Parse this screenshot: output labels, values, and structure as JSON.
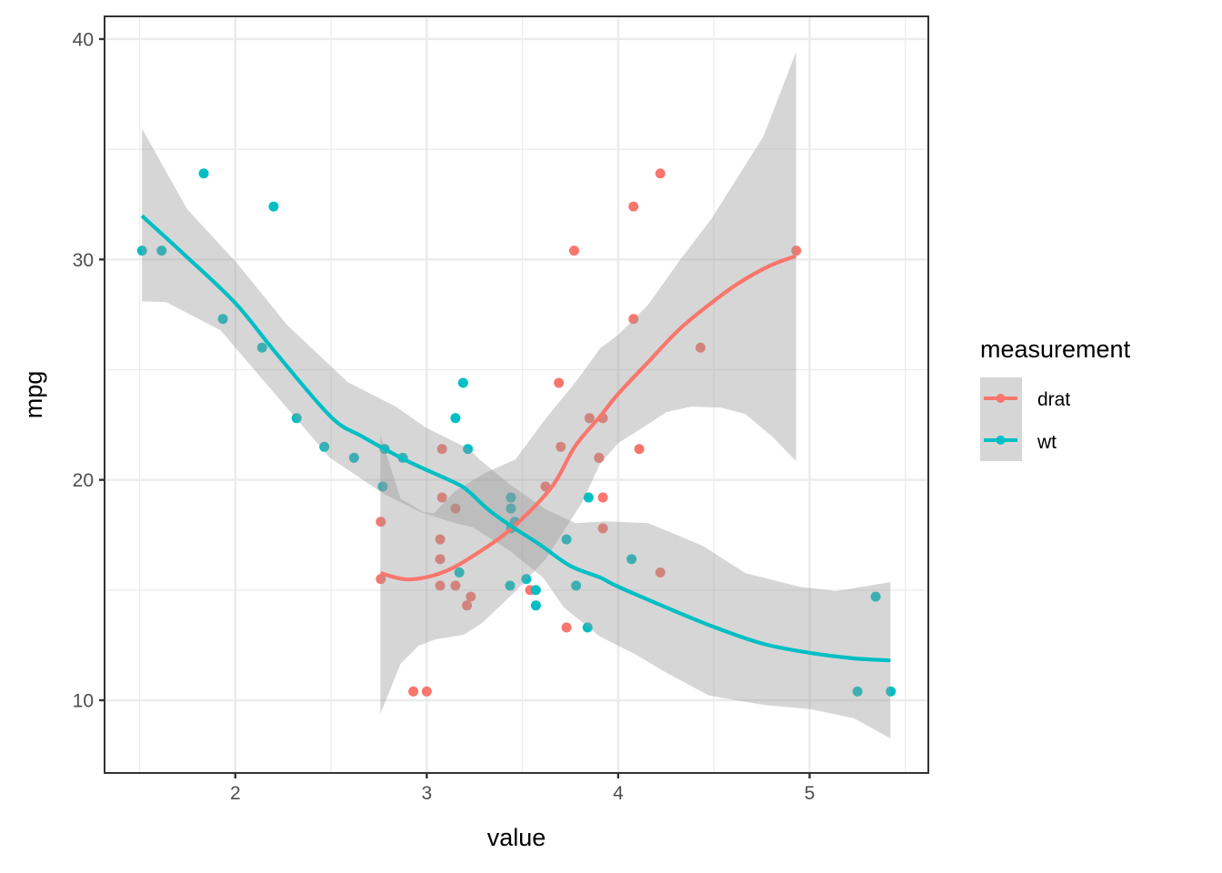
{
  "chart_data": {
    "type": "scatter",
    "title": "",
    "xlabel": "value",
    "ylabel": "mpg",
    "xlim": [
      1.317,
      5.62
    ],
    "ylim": [
      6.7,
      41.03
    ],
    "x_ticks": [
      2,
      3,
      4,
      5
    ],
    "x_tick_labels": [
      "2",
      "3",
      "4",
      "5"
    ],
    "y_ticks": [
      10,
      20,
      30,
      40
    ],
    "y_tick_labels": [
      "10",
      "20",
      "30",
      "40"
    ],
    "x_minor_ticks": [
      1.5,
      2.5,
      3.5,
      4.5,
      5.5
    ],
    "y_minor_ticks": [
      15,
      25,
      35
    ],
    "grid": true,
    "legend": {
      "title": "measurement",
      "position": "right",
      "entries": [
        "drat",
        "wt"
      ]
    },
    "colors": {
      "drat": "#F8766D",
      "wt": "#00BFC4",
      "ribbon": "#999999",
      "grid": "#EBEBEB",
      "border": "#333333"
    },
    "series": [
      {
        "name": "drat",
        "points": [
          [
            3.9,
            21.0
          ],
          [
            3.9,
            21.0
          ],
          [
            3.85,
            22.8
          ],
          [
            3.08,
            21.4
          ],
          [
            3.15,
            18.7
          ],
          [
            2.76,
            18.1
          ],
          [
            3.21,
            14.3
          ],
          [
            3.69,
            24.4
          ],
          [
            3.92,
            22.8
          ],
          [
            3.92,
            19.2
          ],
          [
            3.92,
            17.8
          ],
          [
            3.07,
            16.4
          ],
          [
            3.07,
            17.3
          ],
          [
            3.07,
            15.2
          ],
          [
            2.93,
            10.4
          ],
          [
            3.0,
            10.4
          ],
          [
            3.23,
            14.7
          ],
          [
            4.08,
            32.4
          ],
          [
            4.93,
            30.4
          ],
          [
            4.22,
            33.9
          ],
          [
            3.7,
            21.5
          ],
          [
            2.76,
            15.5
          ],
          [
            3.15,
            15.2
          ],
          [
            3.73,
            13.3
          ],
          [
            3.08,
            19.2
          ],
          [
            4.08,
            27.3
          ],
          [
            4.43,
            26.0
          ],
          [
            3.77,
            30.4
          ],
          [
            4.22,
            15.8
          ],
          [
            3.62,
            19.7
          ],
          [
            3.54,
            15.0
          ],
          [
            4.11,
            21.4
          ]
        ],
        "smooth": [
          [
            2.758,
            15.77
          ],
          [
            2.91,
            15.48
          ],
          [
            3.1,
            15.86
          ],
          [
            3.303,
            16.89
          ],
          [
            3.464,
            17.96
          ],
          [
            3.654,
            19.69
          ],
          [
            3.777,
            21.55
          ],
          [
            3.905,
            22.87
          ],
          [
            4.0,
            23.9
          ],
          [
            4.156,
            25.34
          ],
          [
            4.318,
            26.82
          ],
          [
            4.474,
            27.94
          ],
          [
            4.63,
            28.93
          ],
          [
            4.791,
            29.71
          ],
          [
            4.929,
            30.16
          ]
        ],
        "ribbon_upper": [
          [
            2.758,
            22.04
          ],
          [
            2.791,
            21.13
          ],
          [
            2.863,
            19.15
          ],
          [
            2.981,
            18.54
          ],
          [
            3.038,
            18.49
          ],
          [
            3.147,
            19.48
          ],
          [
            3.303,
            20.31
          ],
          [
            3.464,
            20.93
          ],
          [
            3.621,
            22.78
          ],
          [
            3.777,
            24.43
          ],
          [
            3.905,
            25.96
          ],
          [
            4.0,
            26.58
          ],
          [
            4.156,
            27.94
          ],
          [
            4.318,
            29.92
          ],
          [
            4.488,
            31.86
          ],
          [
            4.569,
            32.97
          ],
          [
            4.758,
            35.57
          ],
          [
            4.929,
            39.4
          ]
        ],
        "ribbon_lower": [
          [
            2.758,
            9.38
          ],
          [
            2.863,
            11.65
          ],
          [
            2.957,
            12.47
          ],
          [
            3.043,
            12.76
          ],
          [
            3.194,
            12.97
          ],
          [
            3.289,
            13.51
          ],
          [
            3.464,
            14.95
          ],
          [
            3.621,
            16.4
          ],
          [
            3.81,
            18.95
          ],
          [
            3.905,
            20.72
          ],
          [
            4.0,
            21.67
          ],
          [
            4.128,
            22.37
          ],
          [
            4.251,
            23.07
          ],
          [
            4.379,
            23.32
          ],
          [
            4.536,
            23.28
          ],
          [
            4.664,
            22.99
          ],
          [
            4.806,
            21.96
          ],
          [
            4.929,
            20.85
          ]
        ]
      },
      {
        "name": "wt",
        "points": [
          [
            2.62,
            21.0
          ],
          [
            2.875,
            21.0
          ],
          [
            2.32,
            22.8
          ],
          [
            3.215,
            21.4
          ],
          [
            3.44,
            18.7
          ],
          [
            3.46,
            18.1
          ],
          [
            3.57,
            14.3
          ],
          [
            3.19,
            24.4
          ],
          [
            3.15,
            22.8
          ],
          [
            3.44,
            19.2
          ],
          [
            3.44,
            17.8
          ],
          [
            4.07,
            16.4
          ],
          [
            3.73,
            17.3
          ],
          [
            3.78,
            15.2
          ],
          [
            5.25,
            10.4
          ],
          [
            5.424,
            10.4
          ],
          [
            5.345,
            14.7
          ],
          [
            2.2,
            32.4
          ],
          [
            1.615,
            30.4
          ],
          [
            1.835,
            33.9
          ],
          [
            2.465,
            21.5
          ],
          [
            3.52,
            15.5
          ],
          [
            3.435,
            15.2
          ],
          [
            3.84,
            13.3
          ],
          [
            3.845,
            19.2
          ],
          [
            1.935,
            27.3
          ],
          [
            2.14,
            26.0
          ],
          [
            1.513,
            30.4
          ],
          [
            3.17,
            15.8
          ],
          [
            2.77,
            19.7
          ],
          [
            3.57,
            15.0
          ],
          [
            2.78,
            21.4
          ]
        ],
        "smooth": [
          [
            1.512,
            31.98
          ],
          [
            1.725,
            30.29
          ],
          [
            2.0,
            28.02
          ],
          [
            2.209,
            25.79
          ],
          [
            2.498,
            22.87
          ],
          [
            2.664,
            21.96
          ],
          [
            2.9,
            20.85
          ],
          [
            3.147,
            19.87
          ],
          [
            3.218,
            19.48
          ],
          [
            3.32,
            18.66
          ],
          [
            3.431,
            17.96
          ],
          [
            3.587,
            17.08
          ],
          [
            3.749,
            16.1
          ],
          [
            3.905,
            15.57
          ],
          [
            4.0,
            15.15
          ],
          [
            4.251,
            14.21
          ],
          [
            4.507,
            13.3
          ],
          [
            4.758,
            12.56
          ],
          [
            5.009,
            12.14
          ],
          [
            5.232,
            11.9
          ],
          [
            5.422,
            11.81
          ]
        ],
        "ribbon_upper": [
          [
            1.512,
            35.94
          ],
          [
            1.749,
            32.27
          ],
          [
            2.0,
            29.92
          ],
          [
            2.27,
            27.03
          ],
          [
            2.588,
            24.43
          ],
          [
            2.839,
            23.32
          ],
          [
            2.995,
            22.37
          ],
          [
            3.218,
            21.42
          ],
          [
            3.275,
            20.93
          ],
          [
            3.431,
            19.81
          ],
          [
            3.621,
            18.66
          ],
          [
            3.777,
            18.04
          ],
          [
            3.938,
            18.12
          ],
          [
            4.156,
            18.04
          ],
          [
            4.441,
            17.01
          ],
          [
            4.664,
            15.77
          ],
          [
            4.948,
            15.15
          ],
          [
            5.137,
            14.95
          ],
          [
            5.422,
            15.36
          ]
        ],
        "ribbon_lower": [
          [
            1.512,
            28.1
          ],
          [
            1.64,
            28.06
          ],
          [
            1.924,
            26.78
          ],
          [
            2.142,
            24.56
          ],
          [
            2.493,
            21.01
          ],
          [
            2.777,
            19.36
          ],
          [
            2.967,
            18.54
          ],
          [
            3.147,
            18.04
          ],
          [
            3.242,
            17.84
          ],
          [
            3.431,
            16.8
          ],
          [
            3.607,
            15.57
          ],
          [
            3.716,
            14.21
          ],
          [
            3.905,
            12.89
          ],
          [
            4.095,
            12.06
          ],
          [
            4.237,
            11.32
          ],
          [
            4.474,
            10.21
          ],
          [
            4.758,
            9.79
          ],
          [
            5.009,
            9.59
          ],
          [
            5.232,
            9.18
          ],
          [
            5.422,
            8.27
          ]
        ]
      }
    ]
  }
}
